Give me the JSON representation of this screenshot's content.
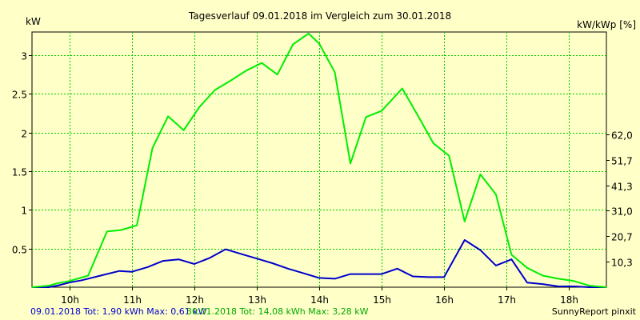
{
  "chart_data": {
    "type": "line",
    "title": "Tagesverlauf 09.01.2018 im Vergleich zum 30.01.2018",
    "ylabel_left": "kW",
    "ylabel_right": "kW/kWp [%]",
    "xlim": [
      9.4,
      18.6
    ],
    "ylim": [
      0,
      3.3
    ],
    "x_ticks": [
      10,
      11,
      12,
      13,
      14,
      15,
      16,
      17,
      18
    ],
    "x_tick_labels": [
      "10h",
      "11h",
      "12h",
      "13h",
      "14h",
      "15h",
      "16h",
      "17h",
      "18h"
    ],
    "y_ticks": [
      0.5,
      1,
      1.5,
      2,
      2.5,
      3
    ],
    "y_tick_labels": [
      "0.5",
      "1",
      "1.5",
      "2",
      "2.5",
      "3"
    ],
    "y2_ticks": [
      0.329,
      0.658,
      0.988,
      1.317,
      1.646,
      1.975
    ],
    "y2_tick_labels": [
      "10,3",
      "20,7",
      "31,0",
      "41,3",
      "51,7",
      "62,0"
    ],
    "grid": true,
    "series": [
      {
        "name": "09.01.2018",
        "color": "#0000cc",
        "x": [
          9.4,
          9.67,
          9.8,
          10.0,
          10.2,
          10.5,
          10.8,
          11.0,
          11.25,
          11.5,
          11.75,
          12.0,
          12.25,
          12.5,
          12.75,
          13.0,
          13.25,
          13.5,
          13.75,
          14.0,
          14.25,
          14.5,
          14.75,
          15.0,
          15.25,
          15.5,
          15.75,
          16.0,
          16.33,
          16.58,
          16.83,
          17.08,
          17.33,
          17.58,
          17.83,
          18.08,
          18.33,
          18.6
        ],
        "y": [
          0,
          0,
          0.02,
          0.06,
          0.09,
          0.15,
          0.21,
          0.2,
          0.26,
          0.34,
          0.36,
          0.3,
          0.38,
          0.49,
          0.43,
          0.37,
          0.31,
          0.24,
          0.18,
          0.12,
          0.11,
          0.17,
          0.17,
          0.17,
          0.24,
          0.14,
          0.13,
          0.13,
          0.61,
          0.48,
          0.28,
          0.36,
          0.06,
          0.04,
          0.01,
          0.01,
          0,
          0
        ]
      },
      {
        "name": "30.01.2018",
        "color": "#00ee00",
        "x": [
          9.4,
          9.67,
          9.8,
          10.0,
          10.3,
          10.6,
          10.83,
          11.08,
          11.33,
          11.58,
          11.83,
          12.08,
          12.33,
          12.58,
          12.83,
          13.08,
          13.33,
          13.58,
          13.83,
          14.0,
          14.25,
          14.5,
          14.75,
          15.0,
          15.33,
          15.58,
          15.83,
          16.08,
          16.33,
          16.58,
          16.83,
          17.08,
          17.33,
          17.58,
          17.83,
          18.08,
          18.33,
          18.6
        ],
        "y": [
          0,
          0.02,
          0.05,
          0.08,
          0.15,
          0.72,
          0.74,
          0.8,
          1.8,
          2.21,
          2.03,
          2.33,
          2.55,
          2.67,
          2.8,
          2.9,
          2.75,
          3.14,
          3.28,
          3.15,
          2.78,
          1.6,
          2.2,
          2.28,
          2.57,
          2.22,
          1.86,
          1.7,
          0.85,
          1.46,
          1.2,
          0.42,
          0.25,
          0.15,
          0.11,
          0.08,
          0.02,
          0
        ]
      }
    ],
    "footer": {
      "left": "09.01.2018 Tot: 1,90 kWh Max: 0,61 kW",
      "middle": "30.01.2018 Tot: 14,08 kWh Max: 3,28 kW",
      "right": "SunnyReport pinxit"
    }
  }
}
